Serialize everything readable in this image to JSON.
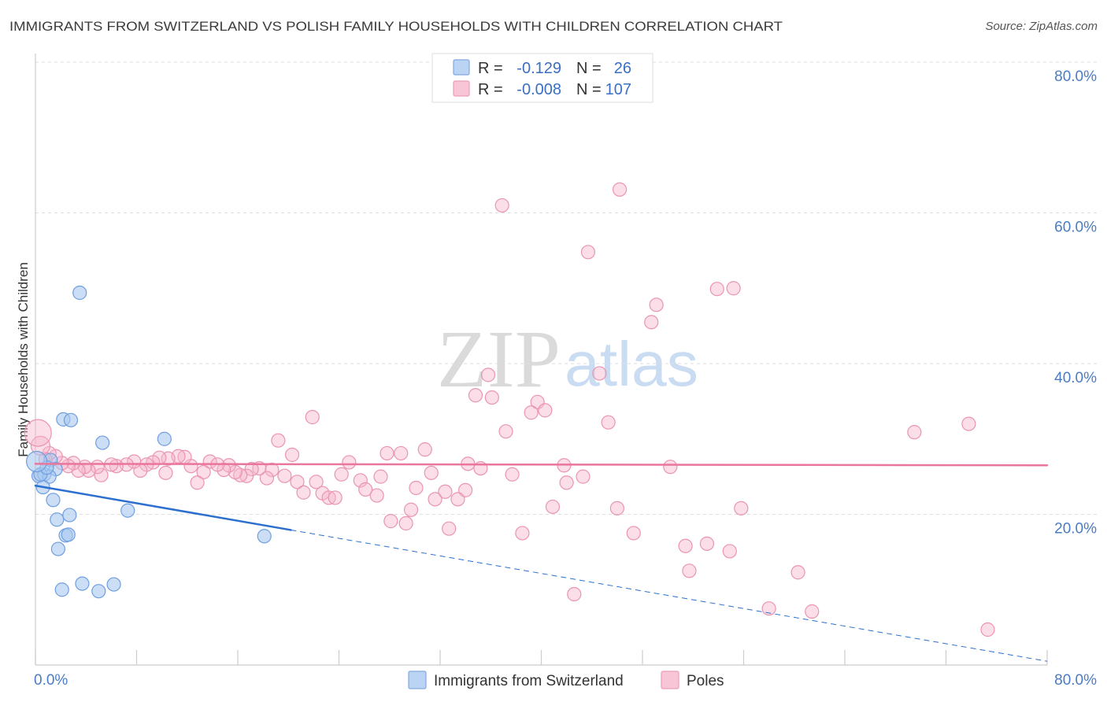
{
  "chart_data": {
    "type": "scatter",
    "title": "IMMIGRANTS FROM SWITZERLAND VS POLISH FAMILY HOUSEHOLDS WITH CHILDREN CORRELATION CHART",
    "source": "Source: ZipAtlas.com",
    "xlabel": "",
    "ylabel": "Family Households with Children",
    "xlim": [
      0,
      80
    ],
    "ylim": [
      0,
      81
    ],
    "grid": true,
    "xticks": [
      0,
      8,
      16,
      24,
      32,
      40,
      48,
      56,
      64,
      72,
      80
    ],
    "xtick_labels": [
      {
        "value": 0,
        "label": "0.0%"
      },
      {
        "value": 80,
        "label": "80.0%"
      }
    ],
    "yticks": [
      {
        "value": 80,
        "label": "80.0%"
      },
      {
        "value": 60,
        "label": "60.0%"
      },
      {
        "value": 40,
        "label": "40.0%"
      },
      {
        "value": 20,
        "label": "20.0%"
      }
    ],
    "series": [
      {
        "name": "Immigrants from Switzerland",
        "r": "-0.129",
        "n": "26",
        "fill": "#a9c8ef",
        "stroke": "#6e9fe0",
        "line_color": "#2c6fce",
        "trend": {
          "y_at_x0": 23.8,
          "y_at_x80": 0.5,
          "solid_until_x": 20.2
        },
        "points": [
          [
            3.5,
            49.4
          ],
          [
            2.2,
            32.6
          ],
          [
            2.8,
            32.5
          ],
          [
            5.3,
            29.5
          ],
          [
            10.2,
            30.0
          ],
          [
            1.2,
            27.2
          ],
          [
            1.6,
            26.0
          ],
          [
            0.25,
            25.1
          ],
          [
            0.7,
            25.3
          ],
          [
            1.1,
            25.0
          ],
          [
            0.6,
            23.6
          ],
          [
            1.4,
            21.9
          ],
          [
            2.7,
            19.9
          ],
          [
            1.7,
            19.3
          ],
          [
            7.3,
            20.5
          ],
          [
            2.4,
            17.2
          ],
          [
            2.6,
            17.3
          ],
          [
            1.8,
            15.4
          ],
          [
            2.1,
            10.0
          ],
          [
            3.7,
            10.8
          ],
          [
            5.0,
            9.8
          ],
          [
            6.2,
            10.7
          ],
          [
            18.1,
            17.1
          ],
          [
            0.4,
            25.3
          ],
          [
            0.9,
            26.2
          ],
          [
            0.1,
            27.0
          ]
        ]
      },
      {
        "name": "Poles",
        "r": "-0.008",
        "n": "107",
        "fill": "#f7b6cb",
        "stroke": "#ea94b2",
        "line_color": "#e9769b",
        "trend": {
          "y_at_x0": 26.7,
          "y_at_x80": 26.5,
          "solid_until_x": 80
        },
        "points": [
          [
            46.2,
            63.1
          ],
          [
            36.9,
            61.0
          ],
          [
            43.7,
            54.8
          ],
          [
            53.9,
            49.9
          ],
          [
            55.2,
            50.0
          ],
          [
            49.1,
            47.8
          ],
          [
            48.7,
            45.5
          ],
          [
            35.8,
            38.5
          ],
          [
            44.6,
            38.7
          ],
          [
            34.8,
            35.8
          ],
          [
            36.1,
            35.5
          ],
          [
            39.7,
            34.9
          ],
          [
            40.3,
            33.8
          ],
          [
            39.2,
            33.5
          ],
          [
            21.9,
            32.9
          ],
          [
            73.8,
            32.0
          ],
          [
            45.3,
            32.2
          ],
          [
            37.2,
            31.0
          ],
          [
            69.5,
            30.9
          ],
          [
            19.2,
            29.8
          ],
          [
            30.8,
            28.6
          ],
          [
            27.8,
            28.1
          ],
          [
            28.9,
            28.1
          ],
          [
            20.3,
            27.9
          ],
          [
            24.8,
            26.9
          ],
          [
            34.2,
            26.7
          ],
          [
            35.2,
            26.1
          ],
          [
            41.8,
            26.5
          ],
          [
            50.2,
            26.3
          ],
          [
            31.3,
            25.5
          ],
          [
            37.7,
            25.3
          ],
          [
            43.3,
            25.0
          ],
          [
            27.3,
            25.0
          ],
          [
            24.2,
            25.3
          ],
          [
            25.7,
            24.5
          ],
          [
            26.1,
            23.3
          ],
          [
            27.0,
            22.5
          ],
          [
            22.2,
            24.3
          ],
          [
            22.7,
            22.8
          ],
          [
            23.2,
            22.2
          ],
          [
            23.7,
            22.2
          ],
          [
            21.2,
            22.9
          ],
          [
            20.7,
            24.3
          ],
          [
            19.7,
            25.1
          ],
          [
            18.7,
            25.9
          ],
          [
            18.3,
            24.8
          ],
          [
            17.7,
            26.1
          ],
          [
            17.1,
            26.0
          ],
          [
            16.7,
            25.1
          ],
          [
            16.2,
            25.2
          ],
          [
            15.8,
            25.6
          ],
          [
            15.3,
            26.5
          ],
          [
            14.9,
            25.9
          ],
          [
            13.8,
            27.0
          ],
          [
            13.3,
            25.6
          ],
          [
            12.8,
            24.2
          ],
          [
            12.3,
            26.4
          ],
          [
            11.8,
            27.6
          ],
          [
            11.3,
            27.7
          ],
          [
            10.5,
            27.4
          ],
          [
            10.3,
            25.5
          ],
          [
            9.8,
            27.5
          ],
          [
            9.3,
            26.9
          ],
          [
            8.8,
            26.6
          ],
          [
            8.3,
            25.8
          ],
          [
            7.8,
            27.0
          ],
          [
            7.2,
            26.6
          ],
          [
            6.4,
            26.4
          ],
          [
            6.0,
            26.6
          ],
          [
            5.2,
            25.2
          ],
          [
            4.9,
            26.3
          ],
          [
            4.2,
            25.8
          ],
          [
            3.9,
            26.3
          ],
          [
            3.4,
            25.8
          ],
          [
            3.0,
            26.8
          ],
          [
            2.6,
            26.4
          ],
          [
            2.1,
            26.8
          ],
          [
            1.6,
            27.7
          ],
          [
            1.1,
            28.1
          ],
          [
            34.0,
            23.2
          ],
          [
            32.4,
            23.0
          ],
          [
            31.6,
            22.0
          ],
          [
            33.4,
            22.0
          ],
          [
            42.0,
            24.2
          ],
          [
            30.1,
            23.5
          ],
          [
            29.7,
            20.6
          ],
          [
            28.1,
            19.1
          ],
          [
            29.3,
            18.8
          ],
          [
            32.7,
            18.1
          ],
          [
            40.9,
            21.0
          ],
          [
            46.0,
            20.8
          ],
          [
            55.8,
            20.8
          ],
          [
            38.5,
            17.5
          ],
          [
            47.3,
            17.5
          ],
          [
            51.4,
            15.8
          ],
          [
            53.1,
            16.1
          ],
          [
            54.9,
            15.1
          ],
          [
            51.7,
            12.5
          ],
          [
            60.3,
            12.3
          ],
          [
            42.6,
            9.4
          ],
          [
            58.0,
            7.5
          ],
          [
            61.4,
            7.1
          ],
          [
            75.3,
            4.7
          ],
          [
            14.4,
            26.6
          ],
          [
            0.8,
            27.3
          ],
          [
            0.4,
            29.1
          ],
          [
            0.2,
            30.8
          ]
        ]
      }
    ]
  },
  "legend": {
    "r_label": "R =",
    "n_label": "N ="
  },
  "watermark": {
    "zip": "ZIP",
    "atlas": "atlas"
  }
}
